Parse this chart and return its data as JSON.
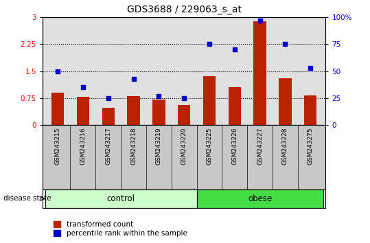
{
  "title": "GDS3688 / 229063_s_at",
  "samples": [
    "GSM243215",
    "GSM243216",
    "GSM243217",
    "GSM243218",
    "GSM243219",
    "GSM243220",
    "GSM243225",
    "GSM243226",
    "GSM243227",
    "GSM243228",
    "GSM243275"
  ],
  "bar_values": [
    0.9,
    0.78,
    0.48,
    0.8,
    0.72,
    0.55,
    1.35,
    1.05,
    2.88,
    1.3,
    0.83
  ],
  "scatter_values": [
    50,
    35,
    25,
    43,
    27,
    25,
    75,
    70,
    97,
    75,
    53
  ],
  "bar_color": "#bb2200",
  "scatter_color": "#0000cc",
  "n_control": 6,
  "n_obese": 5,
  "control_label": "control",
  "obese_label": "obese",
  "disease_state_label": "disease state",
  "ylim_left": [
    0,
    3
  ],
  "ylim_right": [
    0,
    100
  ],
  "yticks_left": [
    0,
    0.75,
    1.5,
    2.25,
    3
  ],
  "yticks_right": [
    0,
    25,
    50,
    75,
    100
  ],
  "ytick_labels_left": [
    "0",
    "0.75",
    "1.5",
    "2.25",
    "3"
  ],
  "ytick_labels_right": [
    "0",
    "25",
    "50",
    "75",
    "100%"
  ],
  "hlines": [
    0.75,
    1.5,
    2.25
  ],
  "legend_bar_label": "transformed count",
  "legend_scatter_label": "percentile rank within the sample",
  "plot_bg": "#e0e0e0",
  "label_bg": "#c8c8c8",
  "control_bg": "#ccffcc",
  "obese_bg": "#44dd44",
  "bar_width": 0.5
}
